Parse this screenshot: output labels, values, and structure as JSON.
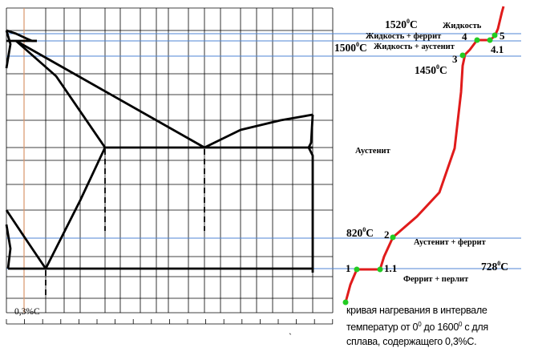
{
  "colors": {
    "grid": "#000000",
    "phase_lines": "#000000",
    "blue_lines": "#4f86d4",
    "alloy_line": "#d9956a",
    "curve": "#e01b1b",
    "points": "#22cc22"
  },
  "labels": {
    "t1520": "1520",
    "t1520_unit": "C",
    "liquid": "Жидкость",
    "liquid_ferrite": "Жидкость + феррит",
    "t1500": "1500",
    "t1500_unit": "C",
    "liquid_austenite": "Жидкость + аустенит",
    "t1450": "1450",
    "t1450_unit": "C",
    "austenite": "Аустенит",
    "t820": "820",
    "t820_unit": "C",
    "austenite_ferrite": "Аустенит + феррит",
    "t728": "728",
    "t728_unit": "C",
    "ferrite_pearlite": "Феррит + перлит",
    "deg": "0",
    "alloy": "0,3%С",
    "tick_mark": "`"
  },
  "points": {
    "p1": "1",
    "p1_1": "1.1",
    "p2": "2",
    "p3": "3",
    "p4": "4",
    "p4_1": "4.1",
    "p5": "5"
  },
  "caption": {
    "line1": "кривая нагревания в интервале",
    "line2_a": "температур от 0",
    "line2_sup1": "0",
    "line2_b": " до 1600",
    "line2_sup2": "0",
    "line2_c": " с для",
    "line3": "сплава, содержащего  0,3%С."
  }
}
